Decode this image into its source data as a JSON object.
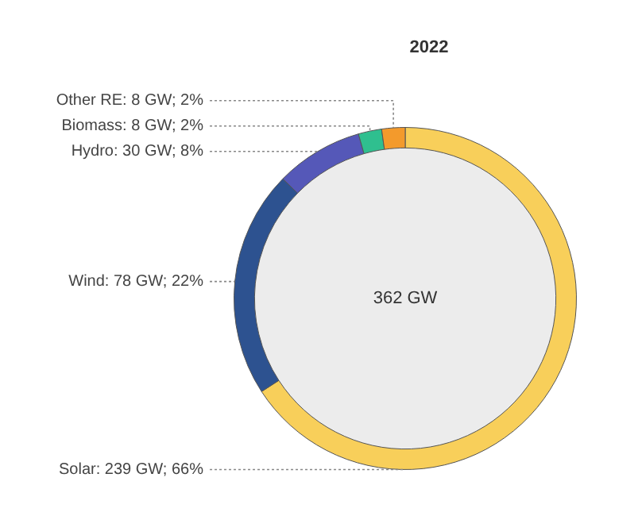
{
  "chart_data": {
    "type": "donut",
    "title": "2022",
    "categories": [
      "Solar",
      "Wind",
      "Hydro",
      "Biomass",
      "Other RE"
    ],
    "values": [
      239,
      78,
      30,
      8,
      8
    ],
    "value_labels": [
      "239 GW; 66%",
      "78 GW; 22%",
      "30 GW; 8%",
      "8 GW; 2%",
      "8 GW; 2%"
    ],
    "colors": [
      "#f8cf5a",
      "#2d5290",
      "#5558b8",
      "#2fbf8f",
      "#f39a2c"
    ],
    "annotations": [
      "362 GW"
    ],
    "legend": false
  }
}
